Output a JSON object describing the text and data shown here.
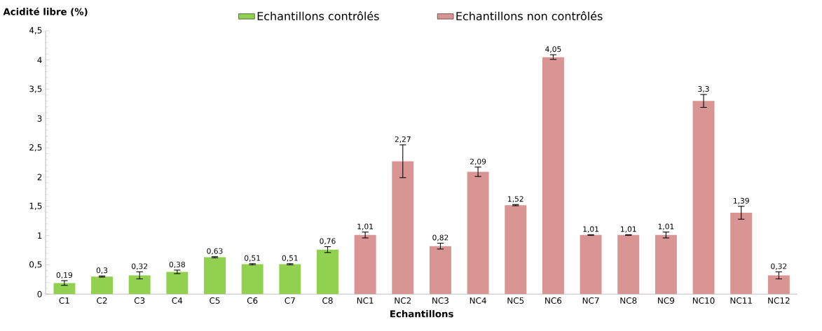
{
  "chart_data": {
    "type": "bar",
    "ylabel": "Acidité libre (%)",
    "xlabel": "Echantillons",
    "categories": [
      "C1",
      "C2",
      "C3",
      "C4",
      "C5",
      "C6",
      "C7",
      "C8",
      "NC1",
      "NC2",
      "NC3",
      "NC4",
      "NC5",
      "NC6",
      "NC7",
      "NC8",
      "NC9",
      "NC10",
      "NC11",
      "NC12"
    ],
    "series": [
      {
        "name": "Echantillons contrôlés",
        "color": "#92d050",
        "values": [
          0.19,
          0.3,
          0.32,
          0.38,
          0.63,
          0.51,
          0.51,
          0.76,
          null,
          null,
          null,
          null,
          null,
          null,
          null,
          null,
          null,
          null,
          null,
          null
        ],
        "errors": [
          0.04,
          0.01,
          0.06,
          0.03,
          0.01,
          0.01,
          0.01,
          0.05,
          null,
          null,
          null,
          null,
          null,
          null,
          null,
          null,
          null,
          null,
          null,
          null
        ],
        "value_labels": [
          "0,19",
          "0,3",
          "0,32",
          "0,38",
          "0,63",
          "0,51",
          "0,51",
          "0,76",
          null,
          null,
          null,
          null,
          null,
          null,
          null,
          null,
          null,
          null,
          null,
          null
        ]
      },
      {
        "name": "Echantillons non contrôlés",
        "color": "#d99594",
        "values": [
          null,
          null,
          null,
          null,
          null,
          null,
          null,
          null,
          1.01,
          2.27,
          0.82,
          2.09,
          1.52,
          4.05,
          1.01,
          1.01,
          1.01,
          3.3,
          1.39,
          0.32
        ],
        "errors": [
          null,
          null,
          null,
          null,
          null,
          null,
          null,
          null,
          0.05,
          0.28,
          0.05,
          0.08,
          0.01,
          0.04,
          0.005,
          0.005,
          0.05,
          0.11,
          0.11,
          0.06
        ],
        "value_labels": [
          null,
          null,
          null,
          null,
          null,
          null,
          null,
          null,
          "1,01",
          "2,27",
          "0,82",
          "2,09",
          "1,52",
          "4,05",
          "1,01",
          "1,01",
          "1,01",
          "3,3",
          "1,39",
          "0,32"
        ]
      }
    ],
    "ylim": [
      0,
      4.5
    ],
    "yticks": [
      0,
      {
        "value": 0.5,
        "label": "0,5"
      },
      1,
      {
        "value": 1.5,
        "label": "1,5"
      },
      2,
      {
        "value": 2.5,
        "label": "2,5"
      },
      3,
      {
        "value": 3.5,
        "label": "3,5"
      },
      4,
      {
        "value": 4.5,
        "label": "4,5"
      }
    ],
    "legend": "top",
    "grid": false
  }
}
